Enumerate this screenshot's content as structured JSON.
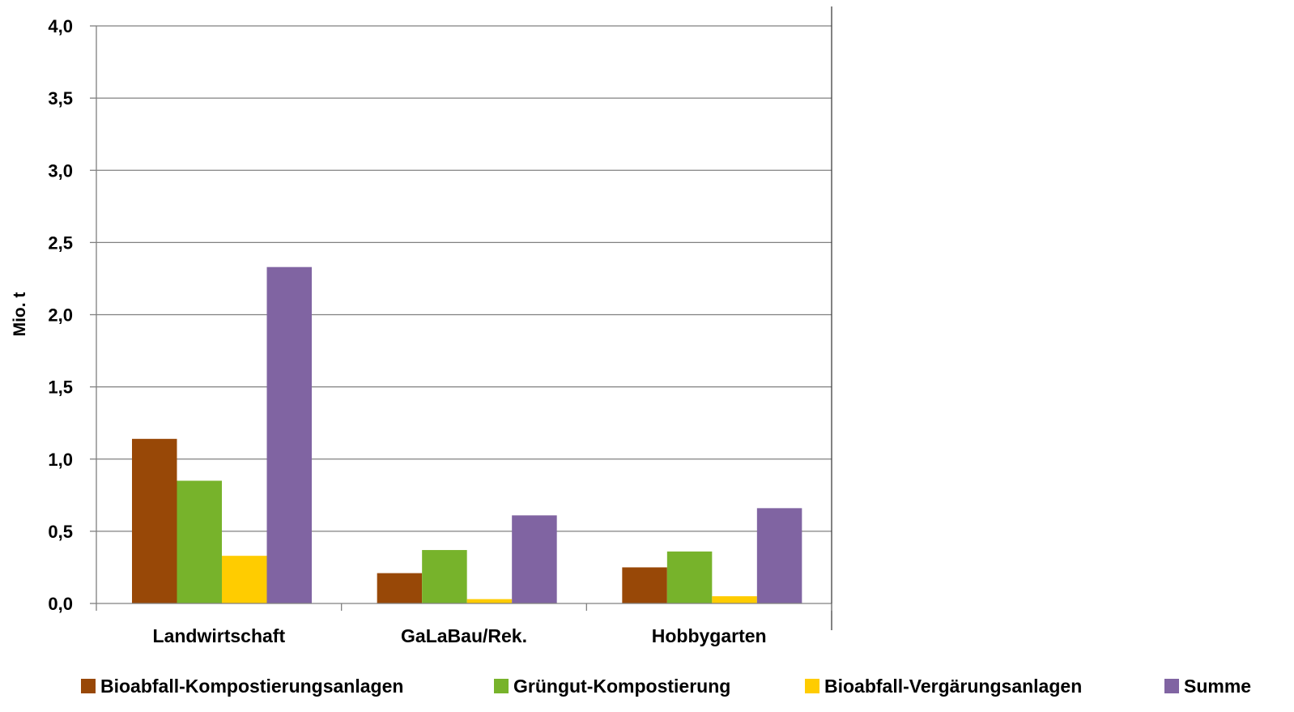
{
  "chart_data": {
    "type": "bar",
    "title": "",
    "xlabel": "",
    "ylabel": "Mio. t",
    "ylim": [
      0,
      4
    ],
    "yticks": [
      "0,0",
      "0,5",
      "1,0",
      "1,5",
      "2,0",
      "2,5",
      "3,0",
      "3,5",
      "4,0"
    ],
    "grid": true,
    "legend_position": "bottom",
    "categories": [
      "Landwirtschaft",
      "GaLaBau/Rek.",
      "Hobbygarten"
    ],
    "series": [
      {
        "name": "Bioabfall-Kompostierungsanlagen",
        "color": "#984807",
        "values": [
          1.14,
          0.21,
          0.25
        ]
      },
      {
        "name": "Grüngut-Kompostierung",
        "color": "#77B32B",
        "values": [
          0.85,
          0.37,
          0.36
        ]
      },
      {
        "name": "Bioabfall-Vergärungsanlagen",
        "color": "#FFCC00",
        "values": [
          0.33,
          0.03,
          0.05
        ]
      },
      {
        "name": "Summe",
        "color": "#8064A2",
        "values": [
          2.33,
          0.61,
          0.66
        ]
      }
    ]
  }
}
